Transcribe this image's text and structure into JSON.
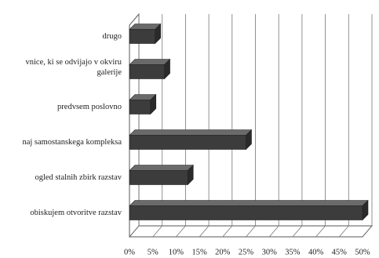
{
  "chart_data": {
    "type": "bar",
    "orientation": "horizontal",
    "three_d": true,
    "categories": [
      "drugo",
      [
        "vnice, ki se odvijajo v okviru",
        "galerije"
      ],
      "predvsem poslovno",
      "naj samostanskega kompleksa",
      "ogled stalnih zbirk razstav",
      "obiskujem otvoritve razstav"
    ],
    "values": [
      5.5,
      7.5,
      4.5,
      25,
      12.5,
      50
    ],
    "color": "#3c3c3c",
    "xlim": [
      0,
      50
    ],
    "xticks": [
      {
        "value": 0,
        "label": "0%"
      },
      {
        "value": 5,
        "label": "5%"
      },
      {
        "value": 10,
        "label": "10%"
      },
      {
        "value": 15,
        "label": "15%"
      },
      {
        "value": 20,
        "label": "20%"
      },
      {
        "value": 25,
        "label": "25%"
      },
      {
        "value": 30,
        "label": "30%"
      },
      {
        "value": 35,
        "label": "35%"
      },
      {
        "value": 40,
        "label": "40%"
      },
      {
        "value": 45,
        "label": "45%"
      },
      {
        "value": 50,
        "label": "50%"
      }
    ],
    "grid": true
  }
}
